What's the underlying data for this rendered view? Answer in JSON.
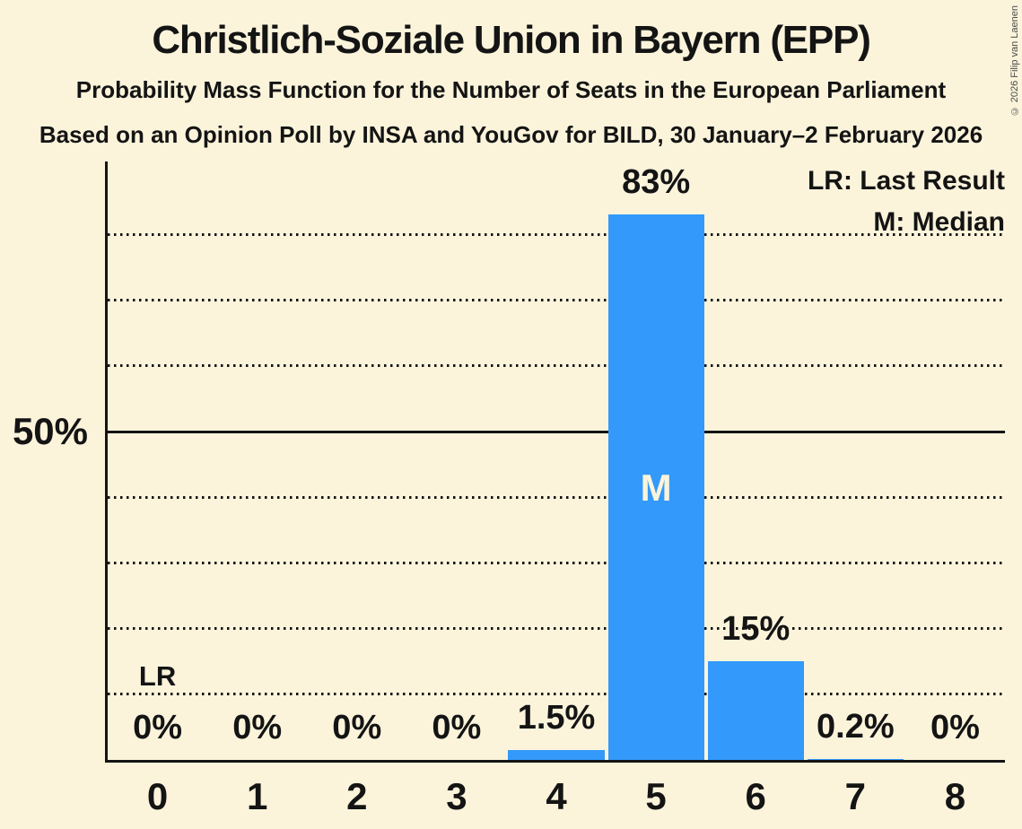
{
  "header": {
    "title": "Christlich-Soziale Union in Bayern (EPP)",
    "subtitle": "Probability Mass Function for the Number of Seats in the European Parliament",
    "poll_details": "Based on an Opinion Poll by INSA and YouGov for BILD, 30 January–2 February 2026"
  },
  "copyright": "© 2026 Filip van Laenen",
  "legend": {
    "last_result": "LR: Last Result",
    "median": "M: Median",
    "position": "top-right"
  },
  "y_axis": {
    "tick_label": "50%"
  },
  "annotations": {
    "last_result_label": "LR",
    "last_result_seat": 0,
    "median_label": "M",
    "median_seat": 5
  },
  "colors": {
    "background": "#FBF4DB",
    "bar": "#3399FB",
    "text": "#141414",
    "copyright_text": "#4A4A4A"
  },
  "chart_data": {
    "type": "bar",
    "title": "Christlich-Soziale Union in Bayern (EPP)",
    "categories": [
      "0",
      "1",
      "2",
      "3",
      "4",
      "5",
      "6",
      "7",
      "8"
    ],
    "values": [
      0,
      0,
      0,
      0,
      1.5,
      83,
      15,
      0.2,
      0
    ],
    "bar_labels": [
      "0%",
      "0%",
      "0%",
      "0%",
      "1.5%",
      "83%",
      "15%",
      "0.2%",
      "0%"
    ],
    "ylim": [
      0,
      91
    ],
    "y_tick_pct": 50,
    "gridlines_dotted_pct": [
      10,
      20,
      30,
      40,
      60,
      70,
      80
    ],
    "gridline_solid_pct": 50,
    "grid": "horizontal-dotted",
    "legend_position": "top-right"
  }
}
